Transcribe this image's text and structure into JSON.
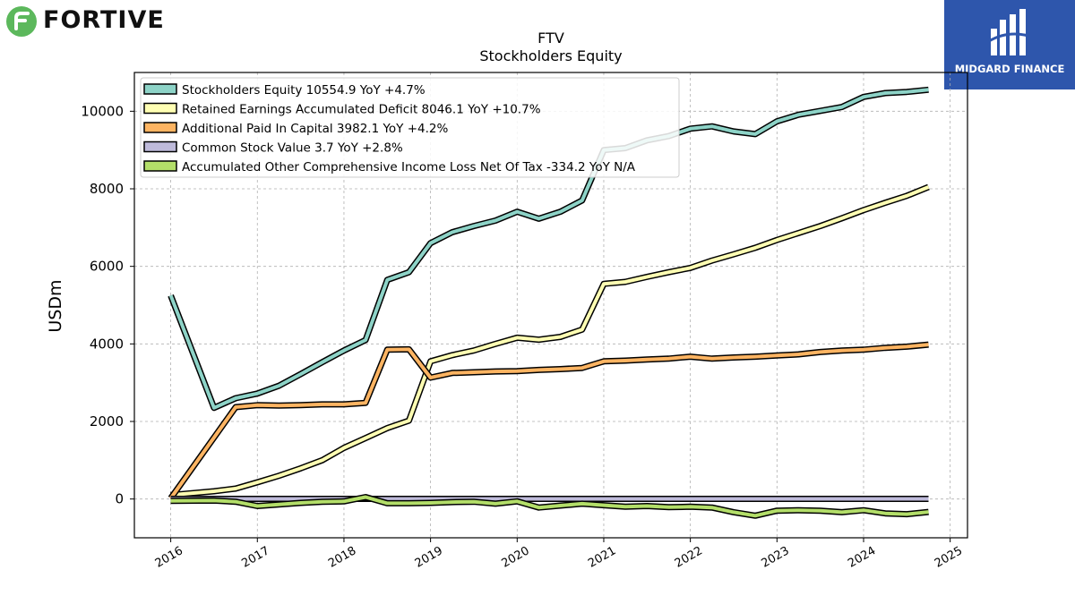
{
  "logos": {
    "left_brand": "FORTIVE",
    "right_brand": "MIDGARD FINANCE"
  },
  "chart_data": {
    "type": "line",
    "title": "FTV",
    "subtitle": "Stockholders  Equity",
    "xlabel": "",
    "ylabel": "USDm",
    "xlim": [
      2015.58,
      2025.2
    ],
    "ylim": [
      -1000,
      11000
    ],
    "x_ticks": [
      "2016",
      "2017",
      "2018",
      "2019",
      "2020",
      "2021",
      "2022",
      "2023",
      "2024",
      "2025"
    ],
    "y_ticks": [
      "0",
      "2000",
      "4000",
      "6000",
      "8000",
      "10000"
    ],
    "grid": true,
    "legend_position": "upper left",
    "series": [
      {
        "name": "Stockholders Equity  10554.9 YoY +4.7%",
        "color": "#8dd3c7",
        "x": [
          2016.0,
          2016.5,
          2016.75,
          2017.0,
          2017.25,
          2017.5,
          2017.75,
          2018.0,
          2018.25,
          2018.5,
          2018.75,
          2019.0,
          2019.25,
          2019.5,
          2019.75,
          2020.0,
          2020.25,
          2020.5,
          2020.75,
          2021.0,
          2021.25,
          2021.5,
          2021.75,
          2022.0,
          2022.25,
          2022.5,
          2022.75,
          2023.0,
          2023.25,
          2023.5,
          2023.75,
          2024.0,
          2024.25,
          2024.5,
          2024.75
        ],
        "values": [
          5250,
          2350,
          2600,
          2720,
          2920,
          3220,
          3530,
          3830,
          4100,
          5650,
          5850,
          6600,
          6880,
          7040,
          7180,
          7410,
          7230,
          7410,
          7700,
          9000,
          9050,
          9250,
          9360,
          9550,
          9610,
          9480,
          9410,
          9740,
          9910,
          10010,
          10110,
          10370,
          10470,
          10500,
          10555
        ]
      },
      {
        "name": "Retained Earnings Accumulated Deficit  8046.1 YoY +10.7%",
        "color": "#ffffb3",
        "x": [
          2016.0,
          2016.5,
          2016.75,
          2017.0,
          2017.25,
          2017.5,
          2017.75,
          2018.0,
          2018.25,
          2018.5,
          2018.75,
          2019.0,
          2019.25,
          2019.5,
          2019.75,
          2020.0,
          2020.25,
          2020.5,
          2020.75,
          2021.0,
          2021.25,
          2021.5,
          2021.75,
          2022.0,
          2022.25,
          2022.5,
          2022.75,
          2023.0,
          2023.25,
          2023.5,
          2023.75,
          2024.0,
          2024.25,
          2024.5,
          2024.75
        ],
        "values": [
          100,
          200,
          270,
          430,
          600,
          790,
          1000,
          1320,
          1570,
          1830,
          2020,
          3550,
          3710,
          3830,
          4000,
          4160,
          4110,
          4180,
          4370,
          5550,
          5600,
          5730,
          5850,
          5960,
          6150,
          6310,
          6480,
          6680,
          6860,
          7040,
          7240,
          7450,
          7640,
          7820,
          8046
        ]
      },
      {
        "name": "Additional Paid In Capital  3982.1 YoY +4.2%",
        "color": "#fdb462",
        "x": [
          2016.0,
          2016.75,
          2017.0,
          2017.25,
          2017.5,
          2017.75,
          2018.0,
          2018.25,
          2018.5,
          2018.75,
          2019.0,
          2019.25,
          2019.5,
          2019.75,
          2020.0,
          2020.25,
          2020.5,
          2020.75,
          2021.0,
          2021.25,
          2021.5,
          2021.75,
          2022.0,
          2022.25,
          2022.5,
          2022.75,
          2023.0,
          2023.25,
          2023.5,
          2023.75,
          2024.0,
          2024.25,
          2024.5,
          2024.75
        ],
        "values": [
          20,
          2370,
          2420,
          2410,
          2420,
          2440,
          2440,
          2480,
          3850,
          3860,
          3130,
          3250,
          3270,
          3290,
          3300,
          3330,
          3350,
          3380,
          3550,
          3570,
          3600,
          3620,
          3670,
          3620,
          3650,
          3670,
          3700,
          3730,
          3790,
          3830,
          3850,
          3900,
          3930,
          3982
        ]
      },
      {
        "name": "Common Stock Value  3.7 YoY +2.8%",
        "color": "#bebada",
        "x": [
          2016.0,
          2024.75
        ],
        "values": [
          3.6,
          3.7
        ]
      },
      {
        "name": "Accumulated Other Comprehensive Income Loss Net Of Tax  -334.2 YoY N/A",
        "color": "#b3de69",
        "x": [
          2016.0,
          2016.5,
          2016.75,
          2017.0,
          2017.25,
          2017.5,
          2017.75,
          2018.0,
          2018.25,
          2018.5,
          2018.75,
          2019.0,
          2019.25,
          2019.5,
          2019.75,
          2020.0,
          2020.25,
          2020.5,
          2020.75,
          2021.0,
          2021.25,
          2021.5,
          2021.75,
          2022.0,
          2022.25,
          2022.5,
          2022.75,
          2023.0,
          2023.25,
          2023.5,
          2023.75,
          2024.0,
          2024.25,
          2024.5,
          2024.75
        ],
        "values": [
          -50,
          -40,
          -70,
          -180,
          -140,
          -100,
          -70,
          -60,
          50,
          -110,
          -110,
          -100,
          -80,
          -70,
          -120,
          -60,
          -220,
          -170,
          -120,
          -160,
          -200,
          -180,
          -210,
          -200,
          -220,
          -340,
          -430,
          -300,
          -290,
          -300,
          -340,
          -290,
          -370,
          -390,
          -334
        ]
      }
    ]
  }
}
